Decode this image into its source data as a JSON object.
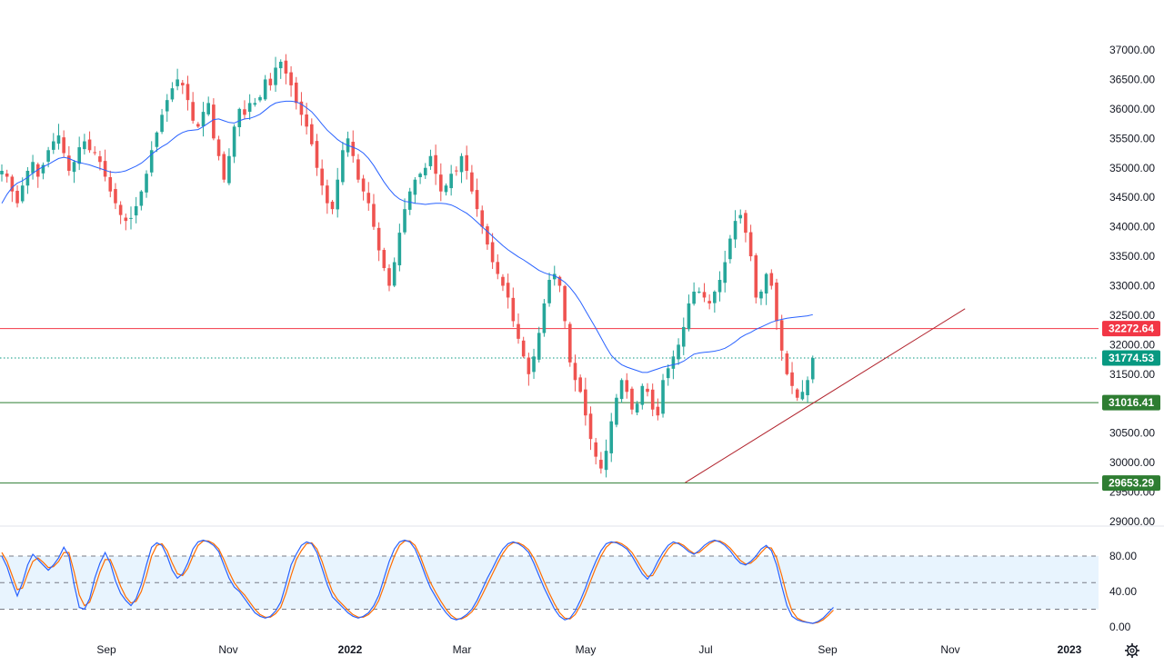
{
  "chart_data": {
    "type": "candlestick",
    "price_axis": {
      "ticks": [
        "37000.00",
        "36500.00",
        "36000.00",
        "35500.00",
        "35000.00",
        "34500.00",
        "34000.00",
        "33500.00",
        "33000.00",
        "32500.00",
        "32000.00",
        "31500.00",
        "31000.00",
        "30500.00",
        "30000.00",
        "29500.00",
        "29000.00"
      ],
      "range": [
        28950,
        37250
      ]
    },
    "time_axis": {
      "labels": [
        "Sep",
        "Nov",
        "2022",
        "Mar",
        "May",
        "Jul",
        "Sep",
        "Nov",
        "2023"
      ],
      "year_labels": [
        "2022",
        "2023"
      ]
    },
    "levels": [
      {
        "label": "32272.64",
        "value": 32272.64,
        "color": "#f23645",
        "style": "solid"
      },
      {
        "label": "31774.53",
        "value": 31774.53,
        "color": "#089981",
        "style": "dotted"
      },
      {
        "label": "31016.41",
        "value": 31016.41,
        "color": "#2e7d32",
        "style": "solid"
      },
      {
        "label": "29653.29",
        "value": 29653.29,
        "color": "#2e7d32",
        "style": "solid"
      }
    ],
    "trendline": {
      "start": [
        315,
        29660
      ],
      "end": [
        444,
        32610
      ],
      "color": "#b2252f"
    },
    "closes": [
      34950,
      34850,
      34600,
      34400,
      34700,
      34950,
      35100,
      34850,
      35050,
      35300,
      35450,
      35550,
      35250,
      34950,
      35100,
      35350,
      35450,
      35300,
      35250,
      35100,
      34850,
      34600,
      34400,
      34200,
      34100,
      34150,
      34350,
      34600,
      34900,
      35300,
      35600,
      35900,
      36150,
      36350,
      36500,
      36400,
      36150,
      35800,
      35700,
      35950,
      36100,
      35500,
      35200,
      34800,
      35200,
      35700,
      36000,
      35900,
      36100,
      36100,
      36200,
      36500,
      36400,
      36700,
      36800,
      36600,
      36400,
      36100,
      35900,
      35700,
      35400,
      35000,
      34700,
      34400,
      34300,
      34800,
      35300,
      35500,
      35200,
      34800,
      34600,
      34400,
      34000,
      33600,
      33300,
      33000,
      33400,
      33900,
      34300,
      34600,
      34800,
      34900,
      35000,
      35200,
      34900,
      34600,
      34700,
      34900,
      34950,
      35200,
      34950,
      34600,
      34300,
      34000,
      33700,
      33400,
      33200,
      33000,
      32800,
      32400,
      32100,
      31800,
      31500,
      31800,
      32200,
      32700,
      33100,
      33200,
      33000,
      32400,
      31700,
      31400,
      31200,
      30800,
      30400,
      30100,
      29900,
      30200,
      30700,
      31100,
      31400,
      31200,
      30900,
      31000,
      31300,
      31200,
      30900,
      30800,
      31400,
      31600,
      31800,
      32000,
      32300,
      32700,
      32900,
      32900,
      32800,
      32700,
      32900,
      33100,
      33400,
      33800,
      34100,
      34200,
      33900,
      33500,
      32800,
      32900,
      33200,
      33000,
      32400,
      31900,
      31500,
      31300,
      31100,
      31200,
      31400,
      31774
    ],
    "ma": [
      34400,
      34550,
      34670,
      34740,
      34780,
      34840,
      34910,
      34970,
      35020,
      35060,
      35110,
      35160,
      35180,
      35160,
      35120,
      35090,
      35070,
      35050,
      35020,
      34990,
      34960,
      34930,
      34920,
      34930,
      34950,
      34990,
      35030,
      35080,
      35150,
      35230,
      35300,
      35360,
      35410,
      35480,
      35550,
      35600,
      35630,
      35640,
      35650,
      35700,
      35760,
      35820,
      35830,
      35800,
      35770,
      35760,
      35800,
      35830,
      35840,
      35870,
      35910,
      35980,
      36050,
      36100,
      36120,
      36130,
      36130,
      36120,
      36080,
      36020,
      35950,
      35850,
      35740,
      35640,
      35560,
      35480,
      35420,
      35380,
      35350,
      35310,
      35250,
      35160,
      35040,
      34900,
      34760,
      34640,
      34540,
      34470,
      34430,
      34420,
      34400,
      34390,
      34380,
      34390,
      34400,
      34400,
      34390,
      34370,
      34330,
      34280,
      34230,
      34160,
      34080,
      34000,
      33920,
      33840,
      33760,
      33680,
      33610,
      33550,
      33490,
      33440,
      33380,
      33320,
      33260,
      33220,
      33190,
      33170,
      33120,
      33060,
      32970,
      32860,
      32730,
      32580,
      32430,
      32280,
      32120,
      31960,
      31820,
      31730,
      31660,
      31620,
      31590,
      31560,
      31530,
      31530,
      31560,
      31590,
      31620,
      31640,
      31660,
      31680,
      31720,
      31780,
      31840,
      31860,
      31870,
      31880,
      31890,
      31910,
      31940,
      31990,
      32050,
      32120,
      32170,
      32210,
      32260,
      32300,
      32340,
      32380,
      32410,
      32430,
      32450,
      32460,
      32470,
      32480,
      32490,
      32510
    ],
    "stoch_axis": {
      "ticks": [
        "80.00",
        "40.00",
        "0.00"
      ],
      "levels": [
        80,
        50,
        20
      ],
      "range": [
        -5,
        100
      ]
    },
    "stoch_k": [
      80,
      68,
      50,
      35,
      50,
      70,
      82,
      76,
      70,
      64,
      70,
      78,
      90,
      80,
      48,
      22,
      20,
      32,
      55,
      72,
      84,
      72,
      52,
      38,
      30,
      24,
      32,
      48,
      70,
      90,
      95,
      92,
      80,
      64,
      55,
      60,
      72,
      88,
      96,
      98,
      96,
      92,
      85,
      70,
      55,
      45,
      40,
      32,
      24,
      16,
      12,
      10,
      12,
      18,
      28,
      48,
      70,
      82,
      92,
      96,
      94,
      84,
      66,
      48,
      34,
      28,
      22,
      16,
      12,
      10,
      12,
      16,
      24,
      36,
      55,
      74,
      88,
      96,
      98,
      96,
      88,
      74,
      58,
      44,
      34,
      24,
      16,
      10,
      8,
      10,
      14,
      20,
      30,
      42,
      55,
      66,
      78,
      88,
      94,
      96,
      94,
      90,
      84,
      72,
      58,
      44,
      32,
      20,
      12,
      8,
      10,
      18,
      30,
      44,
      60,
      74,
      86,
      94,
      96,
      95,
      92,
      88,
      80,
      70,
      60,
      54,
      62,
      74,
      84,
      92,
      96,
      94,
      90,
      85,
      82,
      86,
      92,
      96,
      98,
      96,
      92,
      86,
      78,
      72,
      70,
      74,
      80,
      88,
      92,
      86,
      70,
      46,
      24,
      12,
      8,
      6,
      5,
      4,
      6,
      10,
      16,
      22
    ],
    "stoch_d": [
      84,
      74,
      58,
      42,
      44,
      60,
      74,
      78,
      73,
      67,
      68,
      74,
      84,
      84,
      62,
      36,
      24,
      28,
      44,
      62,
      76,
      76,
      62,
      46,
      34,
      27,
      29,
      40,
      58,
      80,
      92,
      94,
      86,
      72,
      60,
      58,
      66,
      80,
      92,
      97,
      97,
      94,
      88,
      76,
      62,
      50,
      42,
      36,
      28,
      20,
      14,
      11,
      11,
      15,
      22,
      38,
      58,
      76,
      86,
      94,
      95,
      88,
      74,
      56,
      40,
      31,
      25,
      19,
      14,
      11,
      11,
      14,
      20,
      30,
      46,
      64,
      80,
      92,
      97,
      97,
      92,
      80,
      64,
      50,
      39,
      29,
      20,
      13,
      9,
      9,
      12,
      17,
      25,
      36,
      48,
      60,
      72,
      83,
      91,
      95,
      95,
      92,
      87,
      78,
      65,
      51,
      38,
      26,
      16,
      10,
      9,
      14,
      24,
      37,
      52,
      67,
      80,
      90,
      95,
      96,
      94,
      90,
      84,
      75,
      65,
      57,
      58,
      68,
      79,
      88,
      94,
      95,
      92,
      87,
      83,
      84,
      89,
      94,
      97,
      97,
      94,
      89,
      82,
      75,
      71,
      72,
      77,
      84,
      90,
      89,
      78,
      58,
      35,
      18,
      10,
      7,
      5,
      4,
      5,
      8,
      13,
      19
    ]
  }
}
